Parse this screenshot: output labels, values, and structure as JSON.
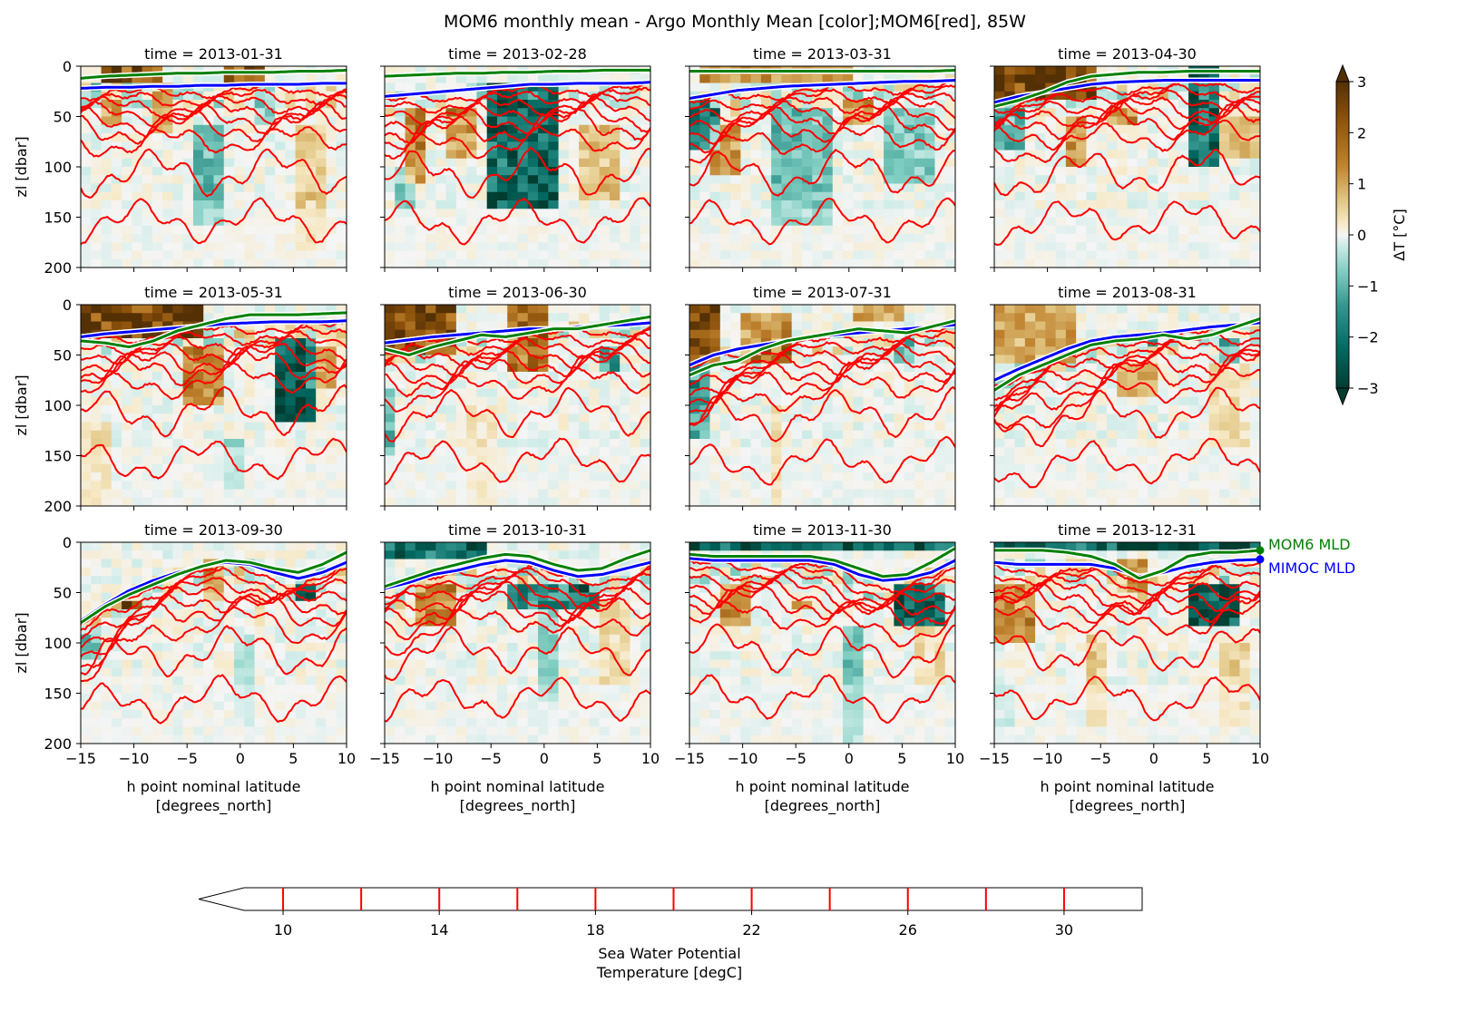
{
  "title": "MOM6 monthly mean - Argo Monthly Mean [color];MOM6[red], 85W",
  "chart_data": {
    "type": "heatmap",
    "panels": [
      {
        "title": "time = 2013-01-31",
        "mom6_mld": [
          12,
          10,
          9,
          8,
          7,
          7,
          6,
          6,
          6,
          5,
          5,
          4
        ],
        "mimoc_mld": [
          22,
          21,
          21,
          20,
          20,
          19,
          19,
          18,
          18,
          18,
          17,
          17
        ],
        "warm": [
          [
            -13,
            -11,
            10,
            60,
            1.5
          ],
          [
            -8,
            -6,
            20,
            70,
            1.2
          ],
          [
            -2,
            2,
            0,
            20,
            2.2
          ],
          [
            5,
            8,
            60,
            180,
            0.8
          ],
          [
            -13,
            -7,
            0,
            14,
            2.5
          ]
        ],
        "cold": [
          [
            -4,
            -2,
            60,
            160,
            -1.4
          ],
          [
            -14,
            -10,
            20,
            30,
            -1.5
          ],
          [
            1,
            3,
            20,
            60,
            -0.8
          ]
        ]
      },
      {
        "title": "time = 2013-02-28",
        "mom6_mld": [
          10,
          9,
          8,
          7,
          7,
          6,
          6,
          5,
          5,
          4,
          4,
          4
        ],
        "mimoc_mld": [
          30,
          28,
          26,
          24,
          22,
          20,
          18,
          18,
          17,
          17,
          17,
          16
        ],
        "warm": [
          [
            -13,
            -11,
            40,
            120,
            1.8
          ],
          [
            -9,
            -6,
            40,
            90,
            1.4
          ],
          [
            3,
            7,
            60,
            130,
            1.0
          ]
        ],
        "cold": [
          [
            -5,
            1,
            20,
            140,
            -2.5
          ],
          [
            -14,
            -12,
            100,
            140,
            -1.0
          ]
        ]
      },
      {
        "title": "time = 2013-03-31",
        "mom6_mld": [
          5,
          5,
          5,
          5,
          5,
          5,
          5,
          5,
          5,
          5,
          5,
          4
        ],
        "mimoc_mld": [
          32,
          28,
          24,
          22,
          20,
          19,
          18,
          17,
          16,
          15,
          15,
          14
        ],
        "warm": [
          [
            -14,
            0,
            0,
            20,
            1.6
          ],
          [
            -13,
            -10,
            60,
            110,
            1.5
          ],
          [
            -1,
            2,
            30,
            60,
            1.2
          ]
        ],
        "cold": [
          [
            -15,
            -12,
            30,
            80,
            -2.0
          ],
          [
            -7,
            -2,
            40,
            160,
            -1.2
          ],
          [
            3,
            8,
            40,
            120,
            -1.0
          ]
        ]
      },
      {
        "title": "time = 2013-04-30",
        "mom6_mld": [
          40,
          34,
          26,
          16,
          10,
          8,
          6,
          6,
          5,
          5,
          5,
          5
        ],
        "mimoc_mld": [
          36,
          30,
          26,
          22,
          18,
          16,
          15,
          14,
          14,
          14,
          14,
          14
        ],
        "warm": [
          [
            -15,
            -5,
            0,
            30,
            2.8
          ],
          [
            -8,
            -6,
            50,
            100,
            1.5
          ],
          [
            -4,
            -2,
            40,
            60,
            1.5
          ],
          [
            6,
            10,
            50,
            90,
            1.0
          ]
        ],
        "cold": [
          [
            3,
            6,
            0,
            100,
            -2.6
          ],
          [
            -15,
            -12,
            40,
            80,
            -1.5
          ]
        ]
      },
      {
        "title": "time = 2013-05-31",
        "mom6_mld": [
          36,
          38,
          42,
          36,
          26,
          20,
          14,
          10,
          10,
          10,
          9,
          8
        ],
        "mimoc_mld": [
          32,
          29,
          27,
          25,
          23,
          21,
          19,
          18,
          17,
          17,
          17,
          16
        ],
        "warm": [
          [
            -15,
            -3,
            0,
            30,
            2.8
          ],
          [
            -5,
            -2,
            40,
            100,
            1.8
          ],
          [
            6,
            9,
            40,
            80,
            1.2
          ],
          [
            -15,
            -12,
            120,
            200,
            0.6
          ]
        ],
        "cold": [
          [
            3,
            7,
            30,
            120,
            -2.8
          ],
          [
            -2,
            0,
            130,
            180,
            -0.8
          ]
        ]
      },
      {
        "title": "time = 2013-06-30",
        "mom6_mld": [
          44,
          50,
          42,
          36,
          30,
          32,
          28,
          24,
          24,
          20,
          16,
          12
        ],
        "mimoc_mld": [
          38,
          35,
          32,
          30,
          28,
          26,
          24,
          24,
          22,
          21,
          20,
          18
        ],
        "warm": [
          [
            -15,
            -8,
            0,
            50,
            2.8
          ],
          [
            -3,
            0,
            0,
            70,
            2.2
          ],
          [
            -7,
            -4,
            100,
            200,
            0.4
          ]
        ],
        "cold": [
          [
            5,
            7,
            40,
            70,
            -1.8
          ],
          [
            -15,
            -14,
            80,
            150,
            -1.2
          ]
        ]
      },
      {
        "title": "time = 2013-07-31",
        "mom6_mld": [
          70,
          60,
          56,
          44,
          36,
          32,
          28,
          24,
          26,
          28,
          22,
          16
        ],
        "mimoc_mld": [
          60,
          50,
          44,
          40,
          36,
          32,
          30,
          28,
          26,
          24,
          22,
          20
        ],
        "warm": [
          [
            -15,
            -12,
            0,
            60,
            2.8
          ],
          [
            -10,
            -5,
            10,
            60,
            1.6
          ],
          [
            0,
            5,
            0,
            20,
            1.3
          ],
          [
            -7,
            -6,
            100,
            200,
            0.8
          ]
        ],
        "cold": [
          [
            -15,
            -13,
            60,
            130,
            -1.6
          ],
          [
            4,
            6,
            30,
            60,
            -1.0
          ]
        ]
      },
      {
        "title": "time = 2013-08-31",
        "mom6_mld": [
          85,
          70,
          60,
          50,
          40,
          36,
          34,
          30,
          34,
          30,
          22,
          14
        ],
        "mimoc_mld": [
          75,
          64,
          54,
          44,
          36,
          32,
          30,
          28,
          25,
          22,
          20,
          18
        ],
        "warm": [
          [
            -15,
            -7,
            0,
            60,
            1.4
          ],
          [
            -3,
            0,
            60,
            90,
            1.2
          ],
          [
            5,
            9,
            60,
            140,
            0.5
          ]
        ],
        "cold": [
          [
            6,
            8,
            30,
            60,
            -1.2
          ],
          [
            -1,
            2,
            30,
            40,
            -0.8
          ]
        ]
      },
      {
        "title": "time = 2013-09-30",
        "mom6_mld": [
          80,
          64,
          52,
          42,
          32,
          24,
          18,
          20,
          26,
          30,
          22,
          10
        ],
        "mimoc_mld": [
          78,
          62,
          48,
          38,
          30,
          24,
          20,
          22,
          30,
          36,
          30,
          20
        ],
        "warm": [
          [
            -11,
            -9,
            60,
            70,
            2.5
          ],
          [
            -3,
            -2,
            20,
            60,
            1.2
          ],
          [
            1,
            2,
            50,
            80,
            0.6
          ]
        ],
        "cold": [
          [
            5,
            7,
            40,
            60,
            -2.8
          ],
          [
            -15,
            -13,
            80,
            120,
            -1.0
          ],
          [
            -1,
            1,
            90,
            180,
            -0.5
          ]
        ]
      },
      {
        "title": "time = 2013-10-31",
        "mom6_mld": [
          44,
          36,
          28,
          22,
          16,
          12,
          14,
          22,
          28,
          26,
          16,
          8
        ],
        "mimoc_mld": [
          46,
          40,
          32,
          28,
          22,
          18,
          20,
          28,
          34,
          32,
          26,
          20
        ],
        "warm": [
          [
            -12,
            -8,
            40,
            80,
            1.8
          ],
          [
            5,
            8,
            60,
            140,
            0.6
          ]
        ],
        "cold": [
          [
            -15,
            -5,
            0,
            20,
            -2.4
          ],
          [
            -3,
            5,
            40,
            70,
            -2.0
          ],
          [
            -1,
            1,
            70,
            160,
            -0.9
          ]
        ]
      },
      {
        "title": "time = 2013-11-30",
        "mom6_mld": [
          12,
          14,
          14,
          14,
          14,
          14,
          18,
          26,
          34,
          32,
          20,
          6
        ],
        "mimoc_mld": [
          16,
          18,
          18,
          18,
          18,
          18,
          22,
          32,
          38,
          36,
          30,
          18
        ],
        "warm": [
          [
            -12,
            -9,
            40,
            80,
            1.5
          ],
          [
            -5,
            -3,
            60,
            70,
            1.4
          ],
          [
            6,
            9,
            80,
            140,
            0.6
          ]
        ],
        "cold": [
          [
            -15,
            10,
            0,
            12,
            -2.8
          ],
          [
            4,
            9,
            40,
            80,
            -2.6
          ],
          [
            -1,
            1,
            80,
            200,
            -1.0
          ]
        ]
      },
      {
        "title": "time = 2013-12-31",
        "mom6_mld": [
          8,
          8,
          8,
          10,
          14,
          22,
          36,
          28,
          14,
          10,
          10,
          8
        ],
        "mimoc_mld": [
          20,
          22,
          22,
          22,
          22,
          26,
          34,
          30,
          24,
          20,
          18,
          17
        ],
        "warm": [
          [
            -15,
            -11,
            40,
            100,
            1.6
          ],
          [
            -3,
            -1,
            20,
            50,
            1.5
          ],
          [
            -6,
            -4,
            90,
            180,
            0.8
          ],
          [
            6,
            9,
            100,
            180,
            0.7
          ]
        ],
        "cold": [
          [
            -15,
            10,
            0,
            12,
            -2.8
          ],
          [
            3,
            8,
            40,
            80,
            -2.8
          ],
          [
            -15,
            -13,
            140,
            180,
            -0.5
          ]
        ]
      }
    ],
    "x": [
      -15,
      -12.73,
      -10.45,
      -8.18,
      -5.91,
      -3.64,
      -1.36,
      0.91,
      3.18,
      5.45,
      7.73,
      10
    ],
    "xlabel": "h point nominal latitude\n[degrees_north]",
    "ylabel": "zl [dbar]",
    "xlim": [
      -15,
      10
    ],
    "ylim": [
      200,
      0
    ],
    "xticks": [
      -15,
      -10,
      -5,
      0,
      5,
      10
    ],
    "yticks": [
      0,
      50,
      100,
      150,
      200
    ],
    "isotherm_levels": [
      10,
      12,
      14,
      16,
      18,
      20,
      22,
      24,
      26,
      28,
      30
    ],
    "colorbar": {
      "label": "ΔT [°C]",
      "ticks": [
        3,
        2,
        1,
        0,
        -1,
        -2,
        -3
      ],
      "vmin": -3,
      "vmax": 3,
      "extend": "both"
    },
    "contour_colorbar": {
      "label": "Sea Water Potential\nTemperature [degC]",
      "ticks": [
        10,
        14,
        18,
        22,
        26,
        30
      ],
      "range": [
        9,
        32
      ],
      "extend": "min"
    },
    "legend": [
      {
        "label": "MOM6 MLD",
        "color": "#008000"
      },
      {
        "label": "MIMOC MLD",
        "color": "#0000ff"
      }
    ]
  }
}
